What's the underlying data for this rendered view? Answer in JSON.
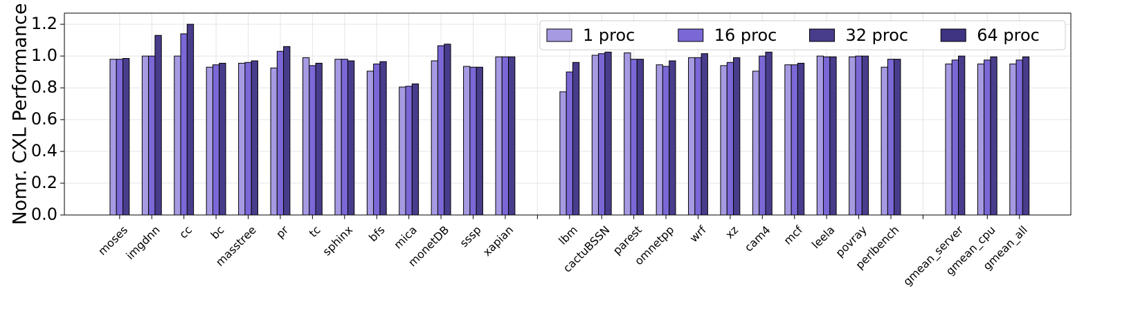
{
  "chart_data": {
    "type": "bar",
    "ylabel": "Nomr. CXL Performance",
    "categories": [
      "moses",
      "imgdnn",
      "cc",
      "bc",
      "masstree",
      "pr",
      "tc",
      "sphinx",
      "bfs",
      "mica",
      "monetDB",
      "sssp",
      "xapian",
      null,
      "lbm",
      "cactuBSSN",
      "parest",
      "omnetpp",
      "wrf",
      "xz",
      "cam4",
      "mcf",
      "leela",
      "povray",
      "perlbench",
      null,
      "gmean_server",
      "gmean_cpu",
      "gmean_all"
    ],
    "series": [
      {
        "name": "1 proc",
        "color": "#a69be2",
        "values": [
          0.98,
          1.0,
          1.0,
          0.93,
          0.955,
          0.925,
          0.99,
          0.98,
          0.905,
          0.805,
          0.97,
          0.935,
          0.995,
          null,
          0.775,
          1.005,
          1.02,
          0.945,
          0.99,
          0.94,
          0.905,
          0.945,
          1.0,
          0.995,
          0.93,
          null,
          0.95,
          0.95,
          0.95
        ]
      },
      {
        "name": "16 proc",
        "color": "#7b68d6",
        "values": [
          0.98,
          1.0,
          1.14,
          0.945,
          0.96,
          1.03,
          0.94,
          0.98,
          0.95,
          0.81,
          1.065,
          0.93,
          0.995,
          null,
          0.9,
          1.015,
          0.98,
          0.935,
          0.99,
          0.96,
          1.0,
          0.945,
          0.995,
          1.0,
          0.98,
          null,
          0.975,
          0.975,
          0.975
        ]
      },
      {
        "name": "32 proc",
        "color": "#483d8b",
        "values": [
          0.985,
          1.13,
          1.2,
          0.955,
          0.97,
          1.06,
          0.955,
          0.97,
          0.965,
          0.825,
          1.075,
          0.93,
          0.995,
          null,
          0.96,
          1.025,
          0.98,
          0.97,
          1.015,
          0.99,
          1.025,
          0.955,
          0.995,
          1.0,
          0.98,
          null,
          1.0,
          0.995,
          0.995
        ]
      },
      {
        "name": "64 proc",
        "color": "#3e3482",
        "values": [
          null,
          null,
          null,
          null,
          null,
          null,
          null,
          null,
          null,
          null,
          null,
          null,
          null,
          null,
          null,
          null,
          null,
          null,
          null,
          null,
          null,
          null,
          null,
          null,
          null,
          null,
          null,
          null,
          null
        ]
      }
    ],
    "ylim": [
      0,
      1.27
    ],
    "yticks": [
      {
        "value": 0,
        "label": "0.0"
      },
      {
        "value": 0.2,
        "label": "0.2"
      },
      {
        "value": 0.4,
        "label": "0.4"
      },
      {
        "value": 0.6,
        "label": "0.6"
      },
      {
        "value": 0.8,
        "label": "0.8"
      },
      {
        "value": 1.0,
        "label": "1.0"
      },
      {
        "value": 1.2,
        "label": "1.2"
      }
    ],
    "grid": true,
    "legend": "upper right"
  }
}
